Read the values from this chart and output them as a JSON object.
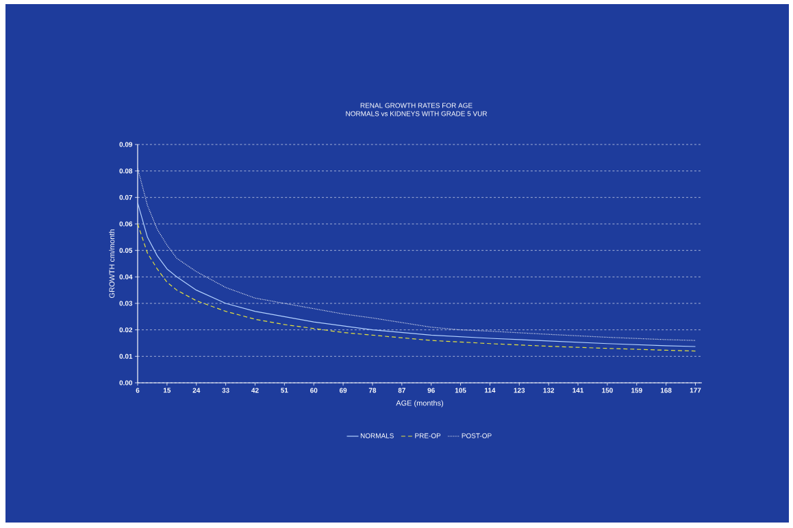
{
  "chart_data": {
    "type": "line",
    "title": "RENAL GROWTH RATES FOR AGE",
    "subtitle": "NORMALS vs KIDNEYS WITH GRADE 5 VUR",
    "xlabel": "AGE (months)",
    "ylabel": "GROWTH cm/month",
    "xlim": [
      6,
      179
    ],
    "xticks": [
      6,
      15,
      24,
      33,
      42,
      51,
      60,
      69,
      78,
      87,
      96,
      105,
      114,
      123,
      132,
      141,
      150,
      159,
      168,
      177
    ],
    "ylim": [
      0,
      0.09
    ],
    "yticks": [
      {
        "value": 0,
        "label": "0.00"
      },
      0.01,
      0.02,
      0.03,
      0.04,
      0.05,
      0.06,
      0.07,
      0.08,
      0.09
    ],
    "grid": "y",
    "legend": "bottom",
    "marker": "none",
    "series": [
      {
        "name": "NORMALS",
        "color": "#b4d2ff",
        "line_style": "solid",
        "x": [
          6,
          9,
          12,
          15,
          18,
          24,
          33,
          42,
          51,
          60,
          69,
          78,
          96,
          114,
          132,
          150,
          168,
          177
        ],
        "values": [
          0.068,
          0.055,
          0.048,
          0.043,
          0.04,
          0.035,
          0.03,
          0.027,
          0.025,
          0.023,
          0.0215,
          0.02,
          0.018,
          0.0168,
          0.0158,
          0.0148,
          0.014,
          0.0137
        ]
      },
      {
        "name": "PRE-OP",
        "color": "#e6e23c",
        "line_style": "dashed",
        "x": [
          6,
          9,
          12,
          15,
          18,
          24,
          33,
          42,
          51,
          60,
          69,
          78,
          96,
          114,
          132,
          150,
          168,
          177
        ],
        "values": [
          0.06,
          0.049,
          0.043,
          0.038,
          0.035,
          0.031,
          0.027,
          0.024,
          0.022,
          0.0205,
          0.019,
          0.018,
          0.016,
          0.0148,
          0.0138,
          0.013,
          0.0123,
          0.012
        ]
      },
      {
        "name": "POST-OP",
        "color": "#ffffff",
        "line_style": "dotted",
        "x": [
          6,
          9,
          12,
          15,
          18,
          24,
          33,
          42,
          51,
          60,
          69,
          78,
          96,
          105,
          114,
          132,
          150,
          168,
          177
        ],
        "values": [
          0.081,
          0.067,
          0.058,
          0.052,
          0.047,
          0.042,
          0.036,
          0.032,
          0.03,
          0.028,
          0.026,
          0.0245,
          0.021,
          0.02,
          0.0195,
          0.0183,
          0.0172,
          0.0163,
          0.016
        ]
      }
    ]
  }
}
